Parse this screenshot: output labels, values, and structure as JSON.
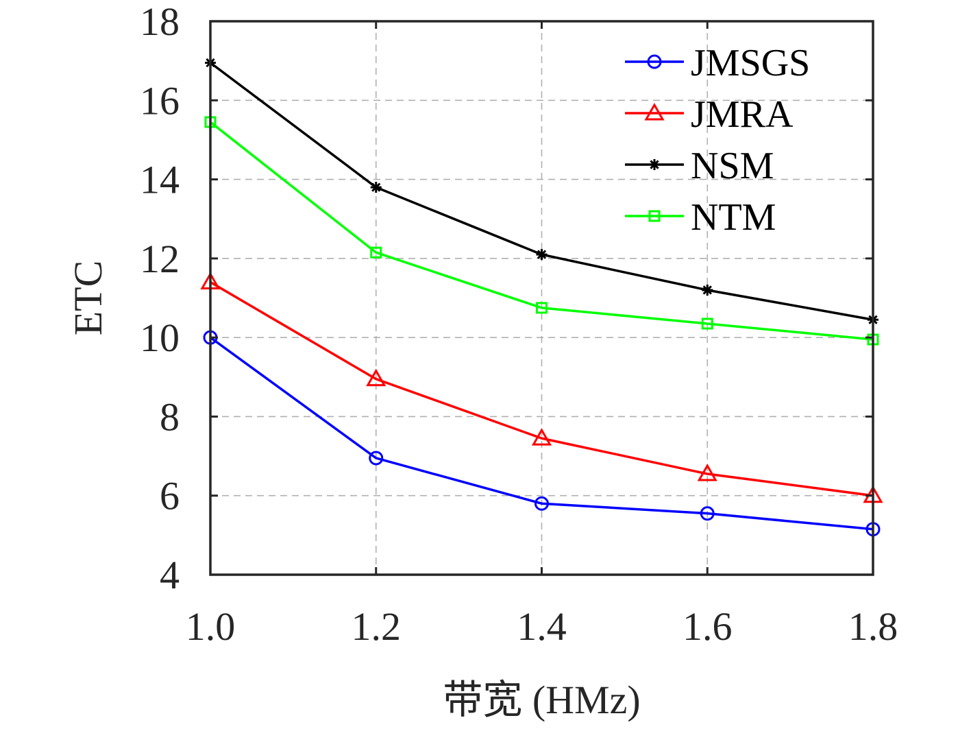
{
  "chart_data": {
    "type": "line",
    "xlabel": "带宽 (HMz)",
    "ylabel": "ETC",
    "x": [
      1.0,
      1.2,
      1.4,
      1.6,
      1.8
    ],
    "x_tick_labels": [
      "1.0",
      "1.2",
      "1.4",
      "1.6",
      "1.8"
    ],
    "xlim": [
      1.0,
      1.8
    ],
    "ylim": [
      4,
      18
    ],
    "y_ticks": [
      4,
      6,
      8,
      10,
      12,
      14,
      16,
      18
    ],
    "y_tick_labels": [
      "4",
      "6",
      "8",
      "10",
      "12",
      "14",
      "16",
      "18"
    ],
    "grid": true,
    "legend_position": "top-right",
    "series": [
      {
        "name": "JMSGS",
        "color": "#0000ff",
        "marker": "circle",
        "values": [
          10.0,
          6.95,
          5.8,
          5.55,
          5.15
        ]
      },
      {
        "name": "JMRA",
        "color": "#ff0000",
        "marker": "triangle",
        "values": [
          11.4,
          8.95,
          7.45,
          6.55,
          6.0
        ]
      },
      {
        "name": "NSM",
        "color": "#000000",
        "marker": "asterisk",
        "values": [
          16.95,
          13.8,
          12.1,
          11.2,
          10.45
        ]
      },
      {
        "name": "NTM",
        "color": "#00ff00",
        "marker": "square",
        "values": [
          15.45,
          12.15,
          10.75,
          10.35,
          9.95
        ]
      }
    ]
  }
}
